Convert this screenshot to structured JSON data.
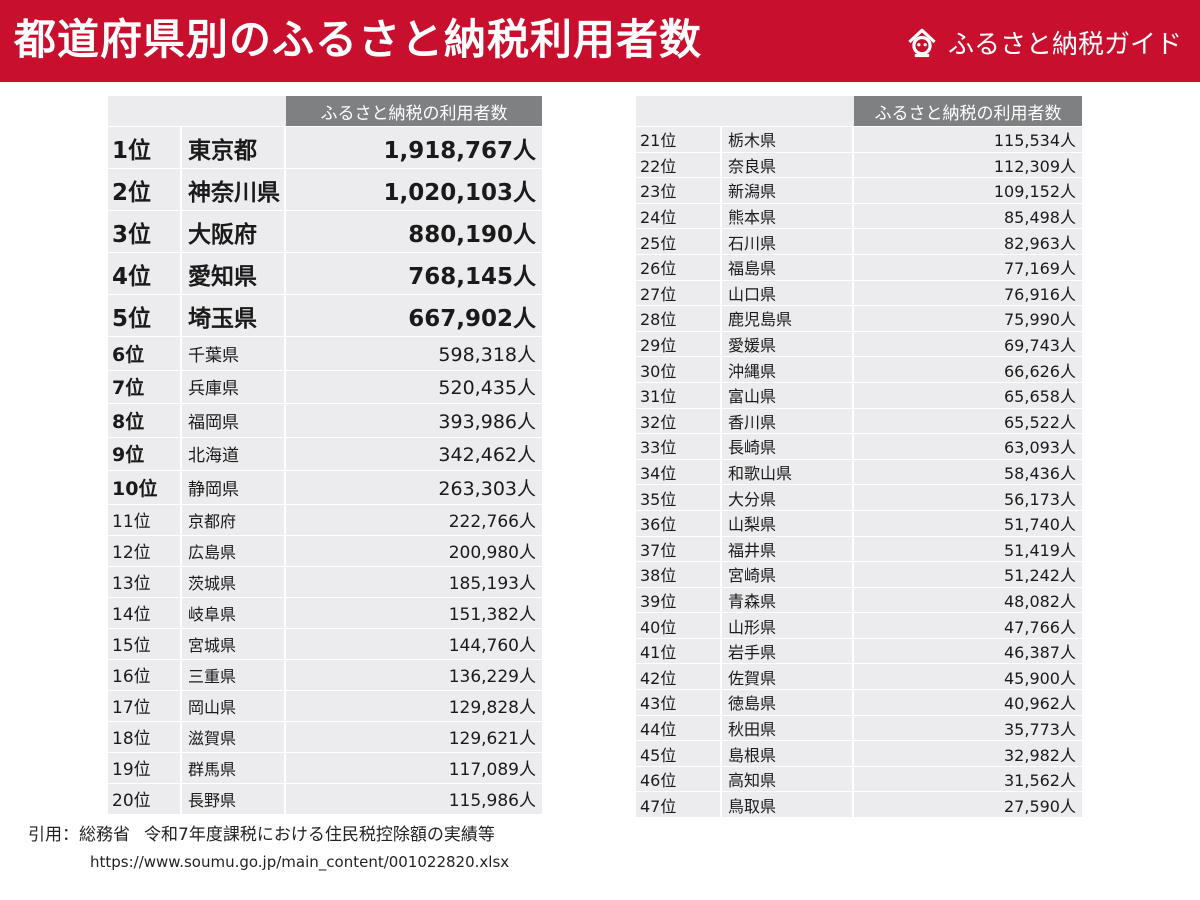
{
  "header": {
    "title": "都道府県別のふるさと納税利用者数",
    "brand": "ふるさと納税ガイド",
    "bg_color": "#c8102e"
  },
  "column_header": "ふるさと納税の利用者数",
  "rows": [
    {
      "rank": "1位",
      "pref": "東京都",
      "value": "1,918,767人"
    },
    {
      "rank": "2位",
      "pref": "神奈川県",
      "value": "1,020,103人"
    },
    {
      "rank": "3位",
      "pref": "大阪府",
      "value": "880,190人"
    },
    {
      "rank": "4位",
      "pref": "愛知県",
      "value": "768,145人"
    },
    {
      "rank": "5位",
      "pref": "埼玉県",
      "value": "667,902人"
    },
    {
      "rank": "6位",
      "pref": "千葉県",
      "value": "598,318人"
    },
    {
      "rank": "7位",
      "pref": "兵庫県",
      "value": "520,435人"
    },
    {
      "rank": "8位",
      "pref": "福岡県",
      "value": "393,986人"
    },
    {
      "rank": "9位",
      "pref": "北海道",
      "value": "342,462人"
    },
    {
      "rank": "10位",
      "pref": "静岡県",
      "value": "263,303人"
    },
    {
      "rank": "11位",
      "pref": "京都府",
      "value": "222,766人"
    },
    {
      "rank": "12位",
      "pref": "広島県",
      "value": "200,980人"
    },
    {
      "rank": "13位",
      "pref": "茨城県",
      "value": "185,193人"
    },
    {
      "rank": "14位",
      "pref": "岐阜県",
      "value": "151,382人"
    },
    {
      "rank": "15位",
      "pref": "宮城県",
      "value": "144,760人"
    },
    {
      "rank": "16位",
      "pref": "三重県",
      "value": "136,229人"
    },
    {
      "rank": "17位",
      "pref": "岡山県",
      "value": "129,828人"
    },
    {
      "rank": "18位",
      "pref": "滋賀県",
      "value": "129,621人"
    },
    {
      "rank": "19位",
      "pref": "群馬県",
      "value": "117,089人"
    },
    {
      "rank": "20位",
      "pref": "長野県",
      "value": "115,986人"
    },
    {
      "rank": "21位",
      "pref": "栃木県",
      "value": "115,534人"
    },
    {
      "rank": "22位",
      "pref": "奈良県",
      "value": "112,309人"
    },
    {
      "rank": "23位",
      "pref": "新潟県",
      "value": "109,152人"
    },
    {
      "rank": "24位",
      "pref": "熊本県",
      "value": "85,498人"
    },
    {
      "rank": "25位",
      "pref": "石川県",
      "value": "82,963人"
    },
    {
      "rank": "26位",
      "pref": "福島県",
      "value": "77,169人"
    },
    {
      "rank": "27位",
      "pref": "山口県",
      "value": "76,916人"
    },
    {
      "rank": "28位",
      "pref": "鹿児島県",
      "value": "75,990人"
    },
    {
      "rank": "29位",
      "pref": "愛媛県",
      "value": "69,743人"
    },
    {
      "rank": "30位",
      "pref": "沖縄県",
      "value": "66,626人"
    },
    {
      "rank": "31位",
      "pref": "富山県",
      "value": "65,658人"
    },
    {
      "rank": "32位",
      "pref": "香川県",
      "value": "65,522人"
    },
    {
      "rank": "33位",
      "pref": "長崎県",
      "value": "63,093人"
    },
    {
      "rank": "34位",
      "pref": "和歌山県",
      "value": "58,436人"
    },
    {
      "rank": "35位",
      "pref": "大分県",
      "value": "56,173人"
    },
    {
      "rank": "36位",
      "pref": "山梨県",
      "value": "51,740人"
    },
    {
      "rank": "37位",
      "pref": "福井県",
      "value": "51,419人"
    },
    {
      "rank": "38位",
      "pref": "宮崎県",
      "value": "51,242人"
    },
    {
      "rank": "39位",
      "pref": "青森県",
      "value": "48,082人"
    },
    {
      "rank": "40位",
      "pref": "山形県",
      "value": "47,766人"
    },
    {
      "rank": "41位",
      "pref": "岩手県",
      "value": "46,387人"
    },
    {
      "rank": "42位",
      "pref": "佐賀県",
      "value": "45,900人"
    },
    {
      "rank": "43位",
      "pref": "徳島県",
      "value": "40,962人"
    },
    {
      "rank": "44位",
      "pref": "秋田県",
      "value": "35,773人"
    },
    {
      "rank": "45位",
      "pref": "島根県",
      "value": "32,982人"
    },
    {
      "rank": "46位",
      "pref": "高知県",
      "value": "31,562人"
    },
    {
      "rank": "47位",
      "pref": "鳥取県",
      "value": "27,590人"
    }
  ],
  "source": {
    "label": "引用：総務省",
    "text": "令和7年度課税における住民税控除額の実績等",
    "url": "https://www.soumu.go.jp/main_content/001022820.xlsx"
  }
}
